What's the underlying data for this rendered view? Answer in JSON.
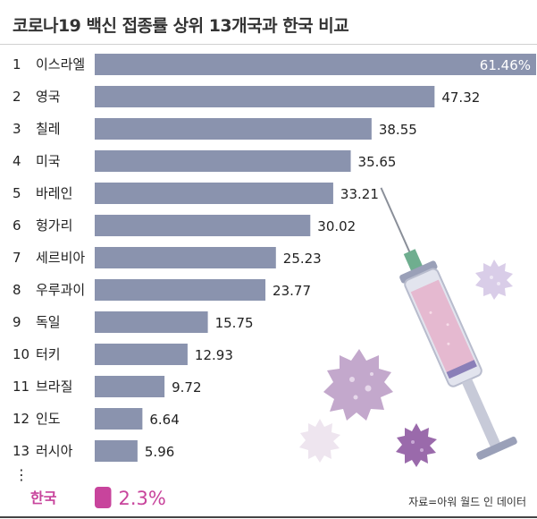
{
  "chart_data": {
    "type": "bar",
    "orientation": "horizontal",
    "title": "코로나19 백신 접종률 상위 13개국과 한국 비교",
    "ranks": [
      "1",
      "2",
      "3",
      "4",
      "5",
      "6",
      "7",
      "8",
      "9",
      "10",
      "11",
      "12",
      "13"
    ],
    "categories": [
      "이스라엘",
      "영국",
      "칠레",
      "미국",
      "바레인",
      "헝가리",
      "세르비아",
      "우루과이",
      "독일",
      "터키",
      "브라질",
      "인도",
      "러시아"
    ],
    "values": [
      61.46,
      47.32,
      38.55,
      35.65,
      33.21,
      30.02,
      25.23,
      23.77,
      15.75,
      12.93,
      9.72,
      6.64,
      5.96
    ],
    "value_labels": [
      "61.46%",
      "47.32",
      "38.55",
      "35.65",
      "33.21",
      "30.02",
      "25.23",
      "23.77",
      "15.75",
      "12.93",
      "9.72",
      "6.64",
      "5.96"
    ],
    "ellipsis": "⋮",
    "highlight": {
      "label": "한국",
      "value": 2.3,
      "value_label": "2.3%"
    },
    "xlim": [
      0,
      61.46
    ],
    "bar_color": "#8a93ae",
    "highlight_color": "#c8449c",
    "grid": false
  },
  "footer": {
    "source": "자료=아워 월드 인 데이터"
  },
  "illustration": {
    "name": "syringe-and-virus-illustration"
  }
}
